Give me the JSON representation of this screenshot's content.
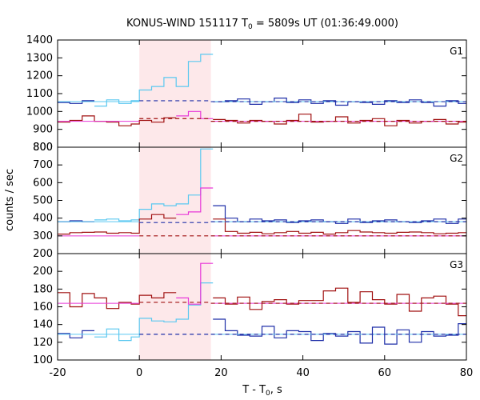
{
  "chart_data": {
    "type": "line",
    "title": "KONUS-WIND 151117 T",
    "title_sub": "0",
    "title_rest": " = 5809s UT (01:36:49.000)",
    "xlabel": "T - T",
    "xlabel_sub": "0",
    "xlabel_rest": ", s",
    "ylabel": "counts / sec",
    "xlim": [
      -20,
      80
    ],
    "x_ticks": [
      "-20",
      "0",
      "20",
      "40",
      "60",
      "80"
    ],
    "shaded_interval": [
      0,
      17.5
    ],
    "colors": {
      "fine": "#1f2fa8",
      "fine_hi": "#5bc8f0",
      "coarse": "#a01010",
      "coarse_hi": "#e838d8",
      "shade": "#fde8ea"
    },
    "panels": [
      {
        "label": "G1",
        "ylim": [
          800,
          1400
        ],
        "yticks": [
          "800",
          "900",
          "1000",
          "1100",
          "1200",
          "1300",
          "1400"
        ],
        "series": [
          {
            "role": "fine",
            "x": [
              -20,
              -17,
              -14,
              -11,
              -8,
              -5,
              -2,
              0,
              3,
              6,
              9,
              12,
              15,
              18,
              21,
              24,
              27,
              30,
              33,
              36,
              39,
              42,
              45,
              48,
              51,
              54,
              57,
              60,
              63,
              66,
              69,
              72,
              75,
              78,
              80
            ],
            "y": [
              1050,
              1045,
              1060,
              1030,
              1065,
              1045,
              1060,
              1120,
              1140,
              1190,
              1140,
              1280,
              1320,
              1055,
              1060,
              1070,
              1040,
              1055,
              1075,
              1050,
              1065,
              1045,
              1060,
              1035,
              1055,
              1050,
              1040,
              1060,
              1050,
              1065,
              1050,
              1030,
              1060,
              1045,
              1045
            ],
            "hi_start": 3
          },
          {
            "role": "coarse",
            "x": [
              -20,
              -17,
              -14,
              -11,
              -8,
              -5,
              -2,
              0,
              3,
              6,
              9,
              12,
              15,
              18,
              21,
              24,
              27,
              30,
              33,
              36,
              39,
              42,
              45,
              48,
              51,
              54,
              57,
              60,
              63,
              66,
              69,
              72,
              75,
              78,
              80
            ],
            "y": [
              940,
              950,
              975,
              945,
              940,
              920,
              930,
              950,
              940,
              965,
              975,
              1000,
              960,
              955,
              950,
              935,
              950,
              945,
              930,
              950,
              985,
              940,
              945,
              970,
              935,
              950,
              960,
              920,
              950,
              935,
              945,
              955,
              930,
              940,
              940
            ],
            "hi_start": 10
          }
        ],
        "levels": [
          {
            "role": "fine",
            "y": 1055,
            "hi_y": 1060
          },
          {
            "role": "coarse",
            "y": 945,
            "hi_y": 960
          }
        ]
      },
      {
        "label": "G2",
        "ylim": [
          200,
          800
        ],
        "yticks": [
          "200",
          "300",
          "400",
          "500",
          "600",
          "700",
          "800"
        ],
        "series": [
          {
            "role": "fine",
            "x": [
              -20,
              -17,
              -14,
              -11,
              -8,
              -5,
              -2,
              0,
              3,
              6,
              9,
              12,
              15,
              18,
              21,
              24,
              27,
              30,
              33,
              36,
              39,
              42,
              45,
              48,
              51,
              54,
              57,
              60,
              63,
              66,
              69,
              72,
              75,
              78,
              80
            ],
            "y": [
              380,
              385,
              380,
              390,
              395,
              385,
              390,
              450,
              480,
              470,
              480,
              530,
              790,
              470,
              400,
              380,
              395,
              385,
              390,
              375,
              385,
              390,
              380,
              370,
              395,
              375,
              385,
              390,
              380,
              375,
              385,
              395,
              370,
              395,
              395
            ],
            "hi_start": 3
          },
          {
            "role": "coarse",
            "x": [
              -20,
              -17,
              -14,
              -11,
              -8,
              -5,
              -2,
              0,
              3,
              6,
              9,
              12,
              15,
              18,
              21,
              24,
              27,
              30,
              33,
              36,
              39,
              42,
              45,
              48,
              51,
              54,
              57,
              60,
              63,
              66,
              69,
              72,
              75,
              78,
              80
            ],
            "y": [
              310,
              318,
              320,
              322,
              315,
              318,
              315,
              395,
              420,
              400,
              420,
              435,
              570,
              395,
              325,
              315,
              320,
              312,
              318,
              325,
              315,
              320,
              310,
              318,
              330,
              322,
              318,
              315,
              320,
              322,
              318,
              312,
              315,
              318,
              318
            ],
            "hi_start": 10
          }
        ],
        "levels": [
          {
            "role": "fine",
            "y": 380,
            "hi_y": 375
          },
          {
            "role": "coarse",
            "y": 300,
            "hi_y": 300
          }
        ]
      },
      {
        "label": "G3",
        "ylim": [
          100,
          220
        ],
        "yticks": [
          "100",
          "120",
          "140",
          "160",
          "180",
          "200"
        ],
        "series": [
          {
            "role": "fine",
            "x": [
              -20,
              -17,
              -14,
              -11,
              -8,
              -5,
              -2,
              0,
              3,
              6,
              9,
              12,
              15,
              18,
              21,
              24,
              27,
              30,
              33,
              36,
              39,
              42,
              45,
              48,
              51,
              54,
              57,
              60,
              63,
              66,
              69,
              72,
              75,
              78,
              80
            ],
            "y": [
              130,
              125,
              133,
              126,
              135,
              122,
              126,
              147,
              144,
              143,
              146,
              162,
              187,
              146,
              133,
              128,
              127,
              138,
              125,
              133,
              132,
              122,
              130,
              127,
              132,
              119,
              137,
              118,
              134,
              120,
              132,
              127,
              128,
              141,
              141
            ],
            "hi_start": 3
          },
          {
            "role": "coarse",
            "x": [
              -20,
              -17,
              -14,
              -11,
              -8,
              -5,
              -2,
              0,
              3,
              6,
              9,
              12,
              15,
              18,
              21,
              24,
              27,
              30,
              33,
              36,
              39,
              42,
              45,
              48,
              51,
              54,
              57,
              60,
              63,
              66,
              69,
              72,
              75,
              78,
              80
            ],
            "y": [
              176,
              160,
              175,
              170,
              158,
              165,
              163,
              173,
              170,
              176,
              170,
              163,
              209,
              170,
              163,
              171,
              157,
              166,
              168,
              163,
              167,
              167,
              178,
              181,
              165,
              177,
              168,
              163,
              174,
              155,
              170,
              172,
              163,
              150,
              150
            ],
            "hi_start": 10
          }
        ],
        "levels": [
          {
            "role": "fine",
            "y": 129,
            "hi_y": 129
          },
          {
            "role": "coarse",
            "y": 164,
            "hi_y": 165
          }
        ]
      }
    ]
  }
}
